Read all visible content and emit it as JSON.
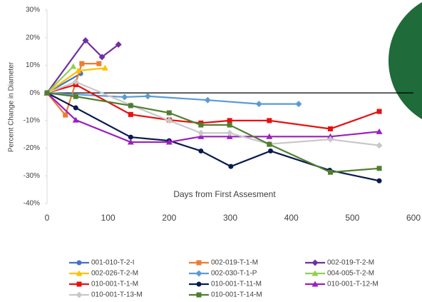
{
  "chart_data": {
    "type": "line",
    "y_label": "Percent Change in Diameter",
    "x_label": "Days from First Assesment",
    "xlim": [
      0,
      600
    ],
    "xticks": [
      0,
      100,
      200,
      300,
      400,
      500,
      600
    ],
    "ylim": [
      -40,
      30
    ],
    "yticks": [
      {
        "value": -40,
        "label": "-40%"
      },
      {
        "value": -30,
        "label": "-30%"
      },
      {
        "value": -20,
        "label": "-20%"
      },
      {
        "value": -10,
        "label": "-10%"
      },
      {
        "value": 0,
        "label": "0%"
      },
      {
        "value": 10,
        "label": "10%"
      },
      {
        "value": 20,
        "label": "20%"
      },
      {
        "value": 30,
        "label": "30%"
      }
    ],
    "series": [
      {
        "name": "001-010-T-2-I",
        "color": "#4472c4",
        "marker": "circle",
        "x": [
          0,
          55
        ],
        "values": [
          0,
          7
        ]
      },
      {
        "name": "002-019-T-1-M",
        "color": "#ed7d31",
        "marker": "square",
        "x": [
          0,
          30,
          57,
          85
        ],
        "values": [
          0,
          -8,
          10.6,
          10.6
        ]
      },
      {
        "name": "002-019-T-2-M",
        "color": "#7030a0",
        "marker": "diamond",
        "x": [
          0,
          63,
          90,
          117
        ],
        "values": [
          0,
          19,
          13,
          17.5
        ]
      },
      {
        "name": "002-026-T-2-M",
        "color": "#ffc000",
        "marker": "triangle",
        "x": [
          0,
          51,
          95
        ],
        "values": [
          0,
          8,
          9
        ]
      },
      {
        "name": "002-030-T-1-P",
        "color": "#5b9bd5",
        "marker": "diamond",
        "x": [
          0,
          127,
          165,
          263,
          347,
          412
        ],
        "values": [
          0,
          -1.5,
          -1.2,
          -2.6,
          -4,
          -4
        ]
      },
      {
        "name": "004-005-T-2-M",
        "color": "#92d050",
        "marker": "triangle",
        "x": [
          0,
          43
        ],
        "values": [
          0,
          9.6
        ]
      },
      {
        "name": "010-001-T-1-M",
        "color": "#e81010",
        "marker": "square",
        "x": [
          0,
          47,
          137,
          200,
          252,
          299,
          364,
          464,
          544
        ],
        "values": [
          0,
          3,
          -7.8,
          -9.8,
          -10.9,
          -10,
          -10,
          -13,
          -6.7
        ]
      },
      {
        "name": "010-001-T-11-M",
        "color": "#0a1a50",
        "marker": "circle",
        "x": [
          0,
          47,
          137,
          200,
          252,
          301,
          366,
          463,
          544
        ],
        "values": [
          0,
          -5.4,
          -16,
          -17.3,
          -21,
          -26.6,
          -21,
          -28,
          -31.8
        ]
      },
      {
        "name": "010-001-T-12-M",
        "color": "#9b1fbf",
        "marker": "triangle",
        "x": [
          0,
          47,
          137,
          200,
          252,
          299,
          364,
          464,
          544
        ],
        "values": [
          0,
          -9.8,
          -17.8,
          -17.8,
          -15.8,
          -15.8,
          -15.8,
          -15.8,
          -14
        ]
      },
      {
        "name": "010-001-T-13-M",
        "color": "#c8c8c8",
        "marker": "diamond",
        "x": [
          0,
          47,
          137,
          200,
          252,
          299,
          364,
          464,
          544
        ],
        "values": [
          0,
          4,
          -4.4,
          -10,
          -14.5,
          -14.5,
          -18.5,
          -16.8,
          -19
        ]
      },
      {
        "name": "010-001-T-14-M",
        "color": "#4f7f2e",
        "marker": "square",
        "x": [
          0,
          47,
          137,
          200,
          252,
          299,
          364,
          464,
          544
        ],
        "values": [
          0,
          -1.3,
          -4.6,
          -7.2,
          -11.6,
          -11.6,
          -18.6,
          -28.7,
          -27.3
        ]
      }
    ]
  }
}
